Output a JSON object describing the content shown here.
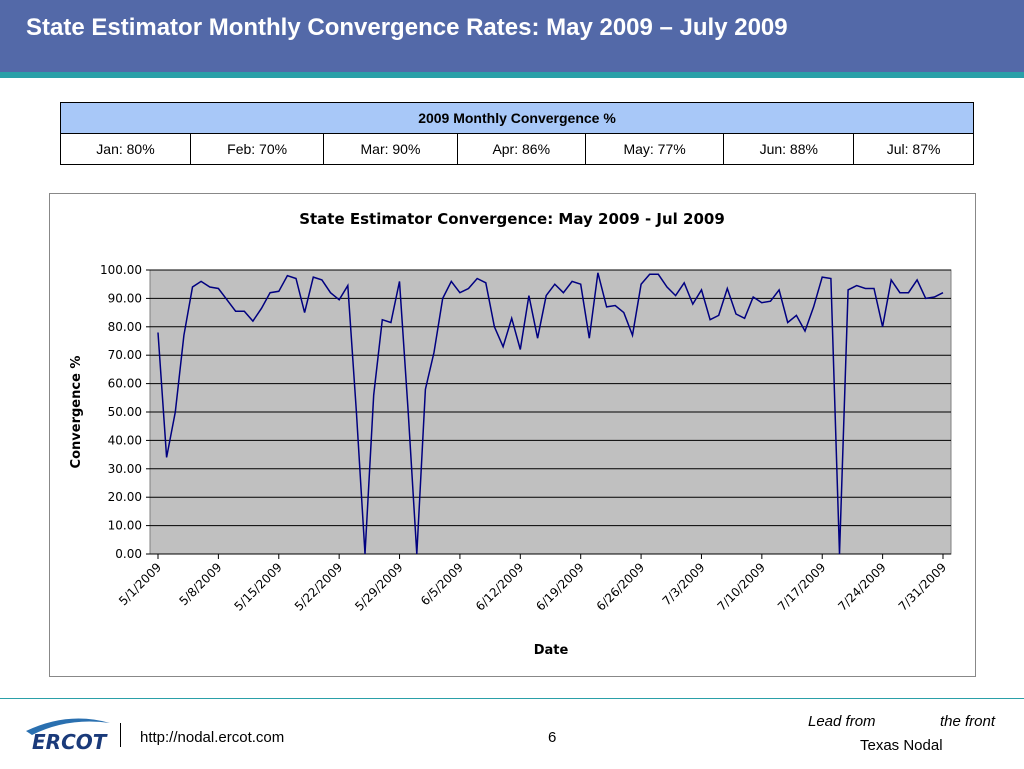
{
  "header": {
    "title": "State Estimator Monthly Convergence Rates: May 2009 – July 2009"
  },
  "table": {
    "title": "2009 Monthly Convergence %",
    "rows": [
      [
        "Jan: 80%",
        "Feb: 70%",
        "Mar: 90%",
        "Apr: 86%",
        "May: 77%",
        "Jun: 88%",
        "Jul: 87%"
      ]
    ]
  },
  "chart_data": {
    "type": "line",
    "title": "State Estimator Convergence: May 2009 - Jul 2009",
    "x_label": "Date",
    "y_label": "Convergence %",
    "x": [
      "5/1/2009",
      "5/2/2009",
      "5/3/2009",
      "5/4/2009",
      "5/5/2009",
      "5/6/2009",
      "5/7/2009",
      "5/8/2009",
      "5/9/2009",
      "5/10/2009",
      "5/11/2009",
      "5/12/2009",
      "5/13/2009",
      "5/14/2009",
      "5/15/2009",
      "5/16/2009",
      "5/17/2009",
      "5/18/2009",
      "5/19/2009",
      "5/20/2009",
      "5/21/2009",
      "5/22/2009",
      "5/23/2009",
      "5/24/2009",
      "5/25/2009",
      "5/26/2009",
      "5/27/2009",
      "5/28/2009",
      "5/29/2009",
      "5/30/2009",
      "5/31/2009",
      "6/1/2009",
      "6/2/2009",
      "6/3/2009",
      "6/4/2009",
      "6/5/2009",
      "6/6/2009",
      "6/7/2009",
      "6/8/2009",
      "6/9/2009",
      "6/10/2009",
      "6/11/2009",
      "6/12/2009",
      "6/13/2009",
      "6/14/2009",
      "6/15/2009",
      "6/16/2009",
      "6/17/2009",
      "6/18/2009",
      "6/19/2009",
      "6/20/2009",
      "6/21/2009",
      "6/22/2009",
      "6/23/2009",
      "6/24/2009",
      "6/25/2009",
      "6/26/2009",
      "6/27/2009",
      "6/28/2009",
      "6/29/2009",
      "6/30/2009",
      "7/1/2009",
      "7/2/2009",
      "7/3/2009",
      "7/4/2009",
      "7/5/2009",
      "7/6/2009",
      "7/7/2009",
      "7/8/2009",
      "7/9/2009",
      "7/10/2009",
      "7/11/2009",
      "7/12/2009",
      "7/13/2009",
      "7/14/2009",
      "7/15/2009",
      "7/16/2009",
      "7/17/2009",
      "7/18/2009",
      "7/19/2009",
      "7/20/2009",
      "7/21/2009",
      "7/22/2009",
      "7/23/2009",
      "7/24/2009",
      "7/25/2009",
      "7/26/2009",
      "7/27/2009",
      "7/28/2009",
      "7/29/2009",
      "7/30/2009",
      "7/31/2009"
    ],
    "series": [
      {
        "color": "#000080",
        "values": [
          78,
          34,
          50,
          77,
          94,
          96,
          94,
          93.5,
          89.5,
          85.5,
          85.5,
          82,
          86.5,
          92,
          92.5,
          98,
          97,
          85,
          97.5,
          96.5,
          92,
          89.5,
          94.5,
          50,
          0,
          56,
          82.5,
          81.5,
          96,
          50,
          0,
          58,
          71,
          90,
          96,
          92,
          93.5,
          97,
          95.5,
          80,
          73,
          83,
          72,
          91,
          76,
          91,
          95,
          92,
          96,
          95,
          76,
          99,
          87,
          87.5,
          85,
          77,
          95,
          98.5,
          98.5,
          94,
          91,
          95.5,
          88,
          93,
          82.5,
          84,
          93.5,
          84.5,
          83,
          90.5,
          88.5,
          89,
          93,
          81.5,
          84,
          78.5,
          87,
          97.5,
          97,
          0,
          93,
          94.5,
          93.5,
          93.5,
          80,
          96.5,
          92,
          92,
          96.5,
          90,
          90.5,
          92
        ]
      }
    ],
    "xticks": [
      "5/1/2009",
      "5/8/2009",
      "5/15/2009",
      "5/22/2009",
      "5/29/2009",
      "6/5/2009",
      "6/12/2009",
      "6/19/2009",
      "6/26/2009",
      "7/3/2009",
      "7/10/2009",
      "7/17/2009",
      "7/24/2009",
      "7/31/2009"
    ],
    "ylim": [
      0,
      100
    ],
    "yticks": [
      {
        "value": 0,
        "label": "0.00"
      },
      {
        "value": 10,
        "label": "10.00"
      },
      {
        "value": 20,
        "label": "20.00"
      },
      {
        "value": 30,
        "label": "30.00"
      },
      {
        "value": 40,
        "label": "40.00"
      },
      {
        "value": 50,
        "label": "50.00"
      },
      {
        "value": 60,
        "label": "60.00"
      },
      {
        "value": 70,
        "label": "70.00"
      },
      {
        "value": 80,
        "label": "80.00"
      },
      {
        "value": 90,
        "label": "90.00"
      },
      {
        "value": 100,
        "label": "100.00"
      }
    ],
    "grid": true
  },
  "footer": {
    "logo": "ERCOT",
    "url": "http://nodal.ercot.com",
    "page": "6",
    "tagline_left": "Lead from",
    "tagline_right": "the front",
    "org": "Texas Nodal"
  }
}
